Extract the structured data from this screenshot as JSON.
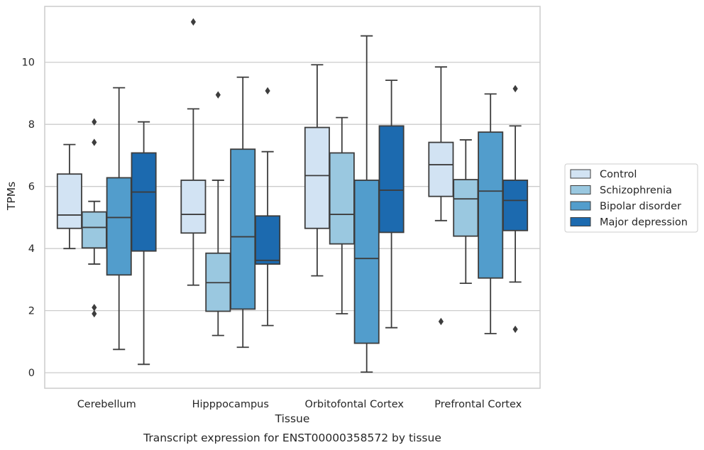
{
  "chart_data": {
    "type": "box",
    "xlabel": "Tissue",
    "ylabel": "TPMs",
    "caption": "Transcript expression for ENST00000358572 by tissue",
    "categories": [
      "Cerebellum",
      "Hipppocampus",
      "Orbitofontal Cortex",
      "Prefrontal Cortex"
    ],
    "ylim": [
      -0.5,
      11.8
    ],
    "yticks": [
      0,
      2,
      4,
      6,
      8,
      10
    ],
    "grid": true,
    "legend_position": "right",
    "series": [
      {
        "name": "Control",
        "color": "#d2e3f3",
        "boxes": [
          {
            "whisker_low": 4.0,
            "q1": 4.65,
            "median": 5.08,
            "q3": 6.4,
            "whisker_high": 7.35,
            "outliers": []
          },
          {
            "whisker_low": 2.82,
            "q1": 4.5,
            "median": 5.1,
            "q3": 6.2,
            "whisker_high": 8.5,
            "outliers": [
              11.3
            ]
          },
          {
            "whisker_low": 3.12,
            "q1": 4.65,
            "median": 6.35,
            "q3": 7.9,
            "whisker_high": 9.92,
            "outliers": []
          },
          {
            "whisker_low": 4.9,
            "q1": 5.68,
            "median": 6.7,
            "q3": 7.42,
            "whisker_high": 9.85,
            "outliers": [
              1.65
            ]
          }
        ]
      },
      {
        "name": "Schizophrenia",
        "color": "#9ac8e0",
        "boxes": [
          {
            "whisker_low": 3.5,
            "q1": 4.02,
            "median": 4.68,
            "q3": 5.18,
            "whisker_high": 5.52,
            "outliers": [
              1.9,
              2.1,
              7.42,
              8.08
            ]
          },
          {
            "whisker_low": 1.2,
            "q1": 1.98,
            "median": 2.9,
            "q3": 3.85,
            "whisker_high": 6.2,
            "outliers": [
              8.95
            ]
          },
          {
            "whisker_low": 1.9,
            "q1": 4.15,
            "median": 5.1,
            "q3": 7.08,
            "whisker_high": 8.22,
            "outliers": []
          },
          {
            "whisker_low": 2.88,
            "q1": 4.4,
            "median": 5.6,
            "q3": 6.22,
            "whisker_high": 7.5,
            "outliers": []
          }
        ]
      },
      {
        "name": "Bipolar disorder",
        "color": "#529dcc",
        "boxes": [
          {
            "whisker_low": 0.75,
            "q1": 3.15,
            "median": 5.0,
            "q3": 6.28,
            "whisker_high": 9.18,
            "outliers": []
          },
          {
            "whisker_low": 0.82,
            "q1": 2.05,
            "median": 4.38,
            "q3": 7.2,
            "whisker_high": 9.52,
            "outliers": []
          },
          {
            "whisker_low": 0.02,
            "q1": 0.95,
            "median": 3.68,
            "q3": 6.2,
            "whisker_high": 10.85,
            "outliers": []
          },
          {
            "whisker_low": 1.26,
            "q1": 3.05,
            "median": 5.85,
            "q3": 7.75,
            "whisker_high": 8.98,
            "outliers": []
          }
        ]
      },
      {
        "name": "Major depression",
        "color": "#1c6aaf",
        "boxes": [
          {
            "whisker_low": 0.27,
            "q1": 3.92,
            "median": 5.82,
            "q3": 7.08,
            "whisker_high": 8.08,
            "outliers": []
          },
          {
            "whisker_low": 1.52,
            "q1": 3.5,
            "median": 3.62,
            "q3": 5.05,
            "whisker_high": 7.12,
            "outliers": [
              9.08
            ]
          },
          {
            "whisker_low": 1.45,
            "q1": 4.52,
            "median": 5.88,
            "q3": 7.95,
            "whisker_high": 9.42,
            "outliers": []
          },
          {
            "whisker_low": 2.92,
            "q1": 4.58,
            "median": 5.55,
            "q3": 6.2,
            "whisker_high": 7.95,
            "outliers": [
              1.4,
              9.15
            ]
          }
        ]
      }
    ]
  }
}
